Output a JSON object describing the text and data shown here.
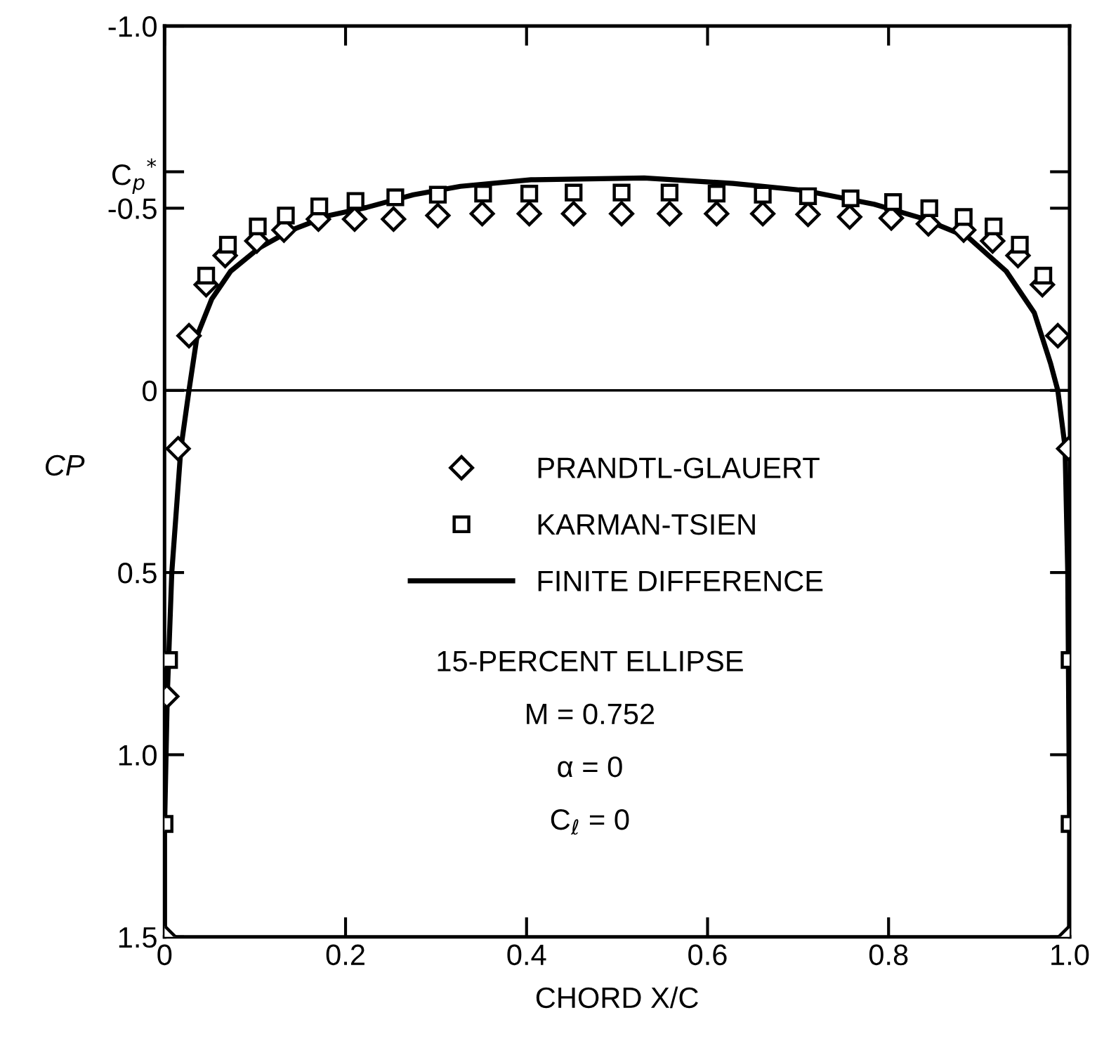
{
  "chart_data": {
    "type": "scatter",
    "xlabel": "CHORD X/C",
    "ylabel": "CP",
    "xlim": [
      0,
      1
    ],
    "ylim": [
      1.5,
      -1.0
    ],
    "xticks": [
      0,
      0.2,
      0.4,
      0.6,
      0.8,
      {
        "value": 1,
        "label": "1.0"
      }
    ],
    "yticks": [
      {
        "value": -1.0,
        "label": "-1.0"
      },
      {
        "value": -0.6,
        "label": "C$_{p}$$^{*}$"
      },
      {
        "value": -0.5,
        "label": "-0.5"
      },
      0,
      0.5,
      {
        "value": 1.0,
        "label": "1.0"
      },
      1.5
    ],
    "grid": false,
    "legend": "center",
    "ref_lines": [
      {
        "axis": "y",
        "value": 0,
        "color": "#000000"
      }
    ],
    "annotations": [
      "15-PERCENT ELLIPSE",
      "M = 0.752",
      "α = 0",
      "C$_{ℓ}$ = 0"
    ],
    "series": [
      {
        "name": "PRANDTL-GLAUERT",
        "marker": "diamond",
        "color": "#000000",
        "x": [
          0,
          0.0025,
          0.015,
          0.027,
          0.046,
          0.067,
          0.102,
          0.132,
          0.17,
          0.21,
          0.253,
          0.302,
          0.351,
          0.403,
          0.452,
          0.505,
          0.558,
          0.61,
          0.661,
          0.711,
          0.757,
          0.803,
          0.844,
          0.883,
          0.915,
          0.943,
          0.97,
          0.987,
          0.999,
          1.0
        ],
        "values": [
          1.5,
          0.84,
          0.16,
          -0.15,
          -0.29,
          -0.37,
          -0.41,
          -0.44,
          -0.47,
          -0.47,
          -0.47,
          -0.48,
          -0.485,
          -0.485,
          -0.485,
          -0.485,
          -0.485,
          -0.485,
          -0.485,
          -0.483,
          -0.476,
          -0.473,
          -0.457,
          -0.44,
          -0.41,
          -0.37,
          -0.29,
          -0.15,
          0.16,
          1.5
        ]
      },
      {
        "name": "KARMAN-TSIEN",
        "marker": "square",
        "color": "#000000",
        "x": [
          0,
          0.005,
          0.046,
          0.07,
          0.103,
          0.134,
          0.171,
          0.211,
          0.255,
          0.302,
          0.352,
          0.403,
          0.452,
          0.505,
          0.558,
          0.61,
          0.661,
          0.711,
          0.758,
          0.805,
          0.845,
          0.883,
          0.916,
          0.945,
          0.971,
          1.0,
          1.0
        ],
        "values": [
          1.19,
          0.74,
          -0.315,
          -0.4,
          -0.45,
          -0.48,
          -0.505,
          -0.52,
          -0.53,
          -0.537,
          -0.54,
          -0.54,
          -0.543,
          -0.543,
          -0.543,
          -0.54,
          -0.537,
          -0.533,
          -0.527,
          -0.517,
          -0.5,
          -0.476,
          -0.45,
          -0.4,
          -0.315,
          0.74,
          1.19
        ]
      },
      {
        "name": "FINITE DIFFERENCE",
        "type": "line",
        "marker": "none",
        "line_style": "solid",
        "color": "#000000",
        "x": [
          0,
          0,
          0.003,
          0.008,
          0.018,
          0.027,
          0.036,
          0.052,
          0.073,
          0.104,
          0.14,
          0.182,
          0.223,
          0.275,
          0.327,
          0.405,
          0.53,
          0.628,
          0.706,
          0.784,
          0.836,
          0.888,
          0.93,
          0.961,
          0.979,
          0.987,
          0.995,
          0.998,
          1.0,
          1.0
        ],
        "values": [
          1.5,
          1.2,
          0.84,
          0.5,
          0.16,
          0,
          -0.15,
          -0.25,
          -0.327,
          -0.39,
          -0.44,
          -0.48,
          -0.502,
          -0.537,
          -0.56,
          -0.578,
          -0.583,
          -0.568,
          -0.549,
          -0.511,
          -0.473,
          -0.42,
          -0.327,
          -0.213,
          -0.074,
          0,
          0.155,
          0.5,
          1.2,
          1.5
        ]
      }
    ]
  }
}
